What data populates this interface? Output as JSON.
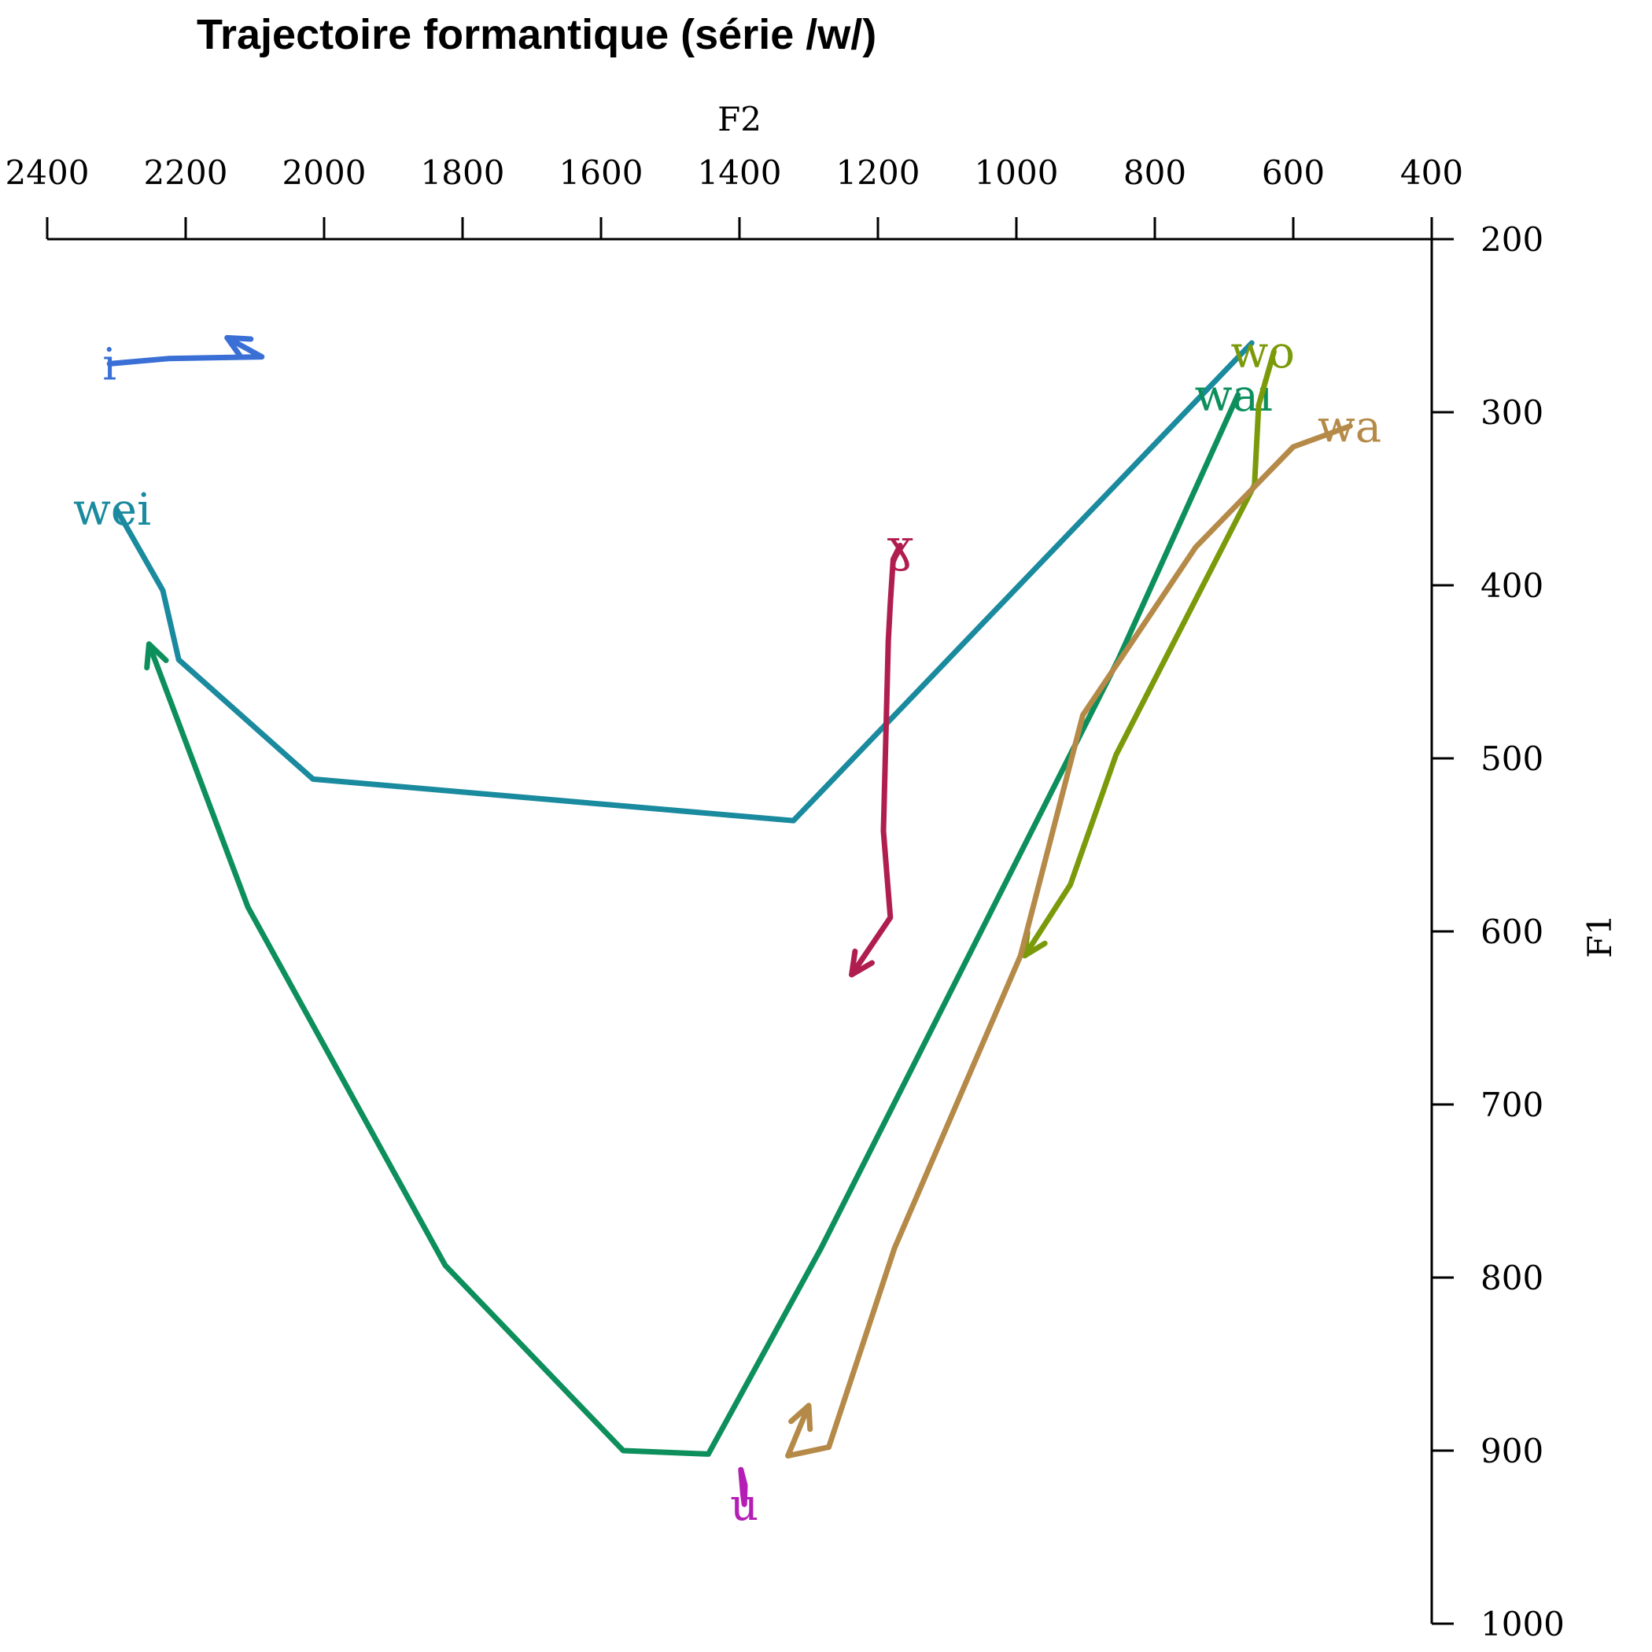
{
  "chart_data": {
    "type": "line",
    "title": "Trajectoire formantique (série /w/)",
    "xlabel": "F2",
    "ylabel": "F1",
    "x_reversed": true,
    "y_reversed": true,
    "xlim": [
      2400,
      400
    ],
    "ylim": [
      200,
      1000
    ],
    "x_axis_position": "top",
    "y_axis_position": "right",
    "xticks": [
      2400,
      2200,
      2000,
      1800,
      1600,
      1400,
      1200,
      1000,
      800,
      600,
      400
    ],
    "yticks": [
      200,
      300,
      400,
      500,
      600,
      700,
      800,
      900,
      1000
    ],
    "grid": false,
    "series": [
      {
        "name": "wei",
        "color": "#1a8a9e",
        "arrow": false,
        "label_anchor": "start",
        "points": [
          [
            2300,
            356
          ],
          [
            2233,
            403
          ],
          [
            2210,
            443
          ],
          [
            2016,
            512
          ],
          [
            1322,
            536
          ],
          [
            660,
            260
          ]
        ]
      },
      {
        "name": "wai",
        "color": "#0d8f5c",
        "arrow": true,
        "label_anchor": "start",
        "points": [
          [
            680,
            290
          ],
          [
            853,
            443
          ],
          [
            1282,
            783
          ],
          [
            1445,
            902
          ],
          [
            1568,
            900
          ],
          [
            1825,
            793
          ],
          [
            2110,
            586
          ],
          [
            2253,
            434
          ]
        ]
      },
      {
        "name": "wo",
        "color": "#7a9a0a",
        "arrow": true,
        "label_anchor": "start",
        "points": [
          [
            628,
            265
          ],
          [
            650,
            296
          ],
          [
            656,
            342
          ],
          [
            856,
            498
          ],
          [
            922,
            573
          ],
          [
            988,
            614
          ]
        ]
      },
      {
        "name": "wa",
        "color": "#b58a48",
        "arrow": true,
        "label_anchor": "end",
        "points": [
          [
            518,
            308
          ],
          [
            600,
            320
          ],
          [
            741,
            378
          ],
          [
            904,
            475
          ],
          [
            994,
            614
          ],
          [
            1176,
            783
          ],
          [
            1271,
            898
          ],
          [
            1330,
            903
          ],
          [
            1300,
            874
          ]
        ]
      },
      {
        "name": "i",
        "color": "#3a6fd6",
        "arrow": true,
        "label_anchor": "middle",
        "points": [
          [
            2310,
            272
          ],
          [
            2225,
            269
          ],
          [
            2090,
            268
          ],
          [
            2140,
            257
          ]
        ]
      },
      {
        "name": "ɣ",
        "color": "#b01e50",
        "arrow": true,
        "label_anchor": "middle",
        "points": [
          [
            1168,
            377
          ],
          [
            1178,
            385
          ],
          [
            1182,
            410
          ],
          [
            1185,
            432
          ],
          [
            1192,
            542
          ],
          [
            1182,
            592
          ],
          [
            1238,
            625
          ]
        ]
      },
      {
        "name": "u",
        "color": "#b41eb4",
        "arrow": false,
        "label_anchor": "middle",
        "points": [
          [
            1393,
            931
          ],
          [
            1392,
            920
          ],
          [
            1398,
            911
          ],
          [
            1395,
            925
          ],
          [
            1393,
            931
          ]
        ]
      }
    ]
  }
}
